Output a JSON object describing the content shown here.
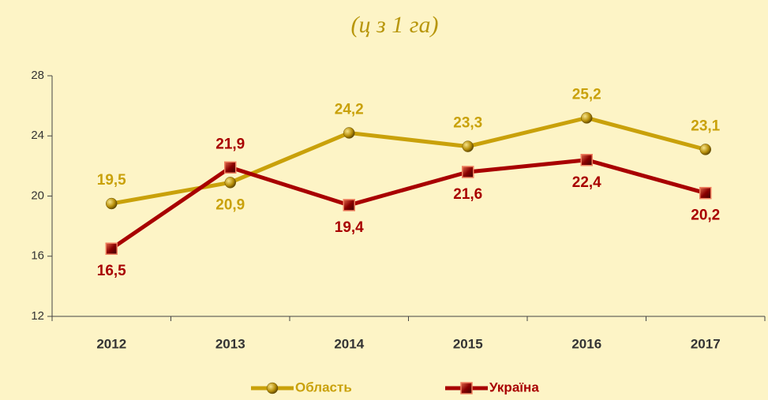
{
  "chart_data": {
    "type": "line",
    "title": "(ц з 1 га)",
    "categories": [
      "2012",
      "2013",
      "2014",
      "2015",
      "2016",
      "2017"
    ],
    "series": [
      {
        "name": "Область",
        "color": "#c9a10a",
        "values": [
          19.5,
          20.9,
          24.2,
          23.3,
          25.2,
          23.1
        ],
        "value_labels": [
          "19,5",
          "20,9",
          "24,2",
          "23,3",
          "25,2",
          "23,1"
        ],
        "marker": "circle"
      },
      {
        "name": "Україна",
        "color": "#a80000",
        "values": [
          16.5,
          21.9,
          19.4,
          21.6,
          22.4,
          20.2
        ],
        "value_labels": [
          "16,5",
          "21,9",
          "19,4",
          "21,6",
          "22,4",
          "20,2"
        ],
        "marker": "square"
      }
    ],
    "ylim": [
      12,
      28
    ],
    "yticks": [
      12,
      16,
      20,
      24,
      28
    ],
    "grid": false,
    "legend": "bottom"
  }
}
